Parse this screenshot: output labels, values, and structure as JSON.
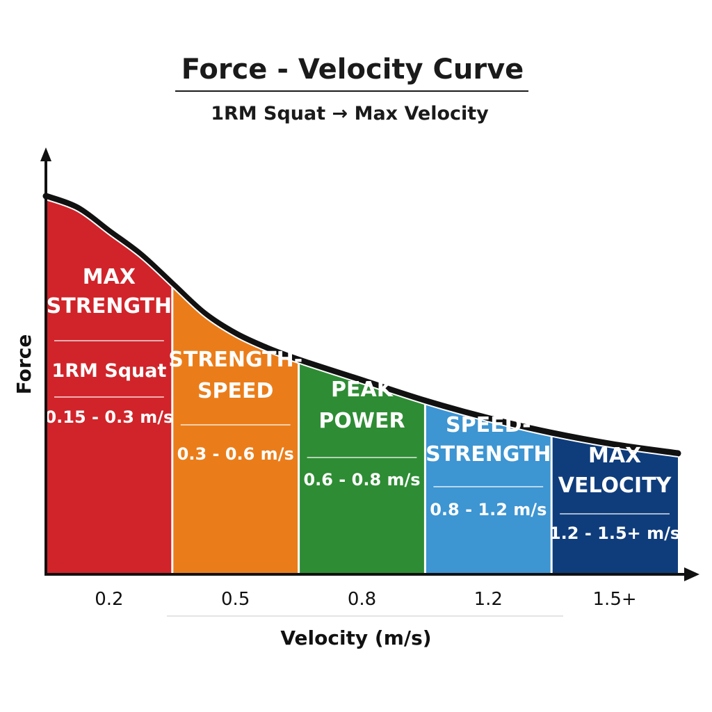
{
  "chart_data": {
    "type": "area",
    "title": "Force - Velocity Curve",
    "subtitle": "1RM Squat → Max Velocity",
    "xlabel": "Velocity (m/s)",
    "ylabel": "Force",
    "x_ticks": [
      "0.2",
      "0.5",
      "0.8",
      "1.2",
      "1.5+"
    ],
    "grid": false,
    "zones": [
      {
        "name_lines": [
          "MAX",
          "STRENGTH"
        ],
        "sub": "1RM Squat",
        "range": "0.15 - 0.3 m/s",
        "color": "#d0242a",
        "x_start": 0.0,
        "x_end": 0.3
      },
      {
        "name_lines": [
          "STRENGTH-",
          "SPEED"
        ],
        "sub": "",
        "range": "0.3 - 0.6 m/s",
        "color": "#ea7d1a",
        "x_start": 0.3,
        "x_end": 0.6
      },
      {
        "name_lines": [
          "PEAK",
          "POWER"
        ],
        "sub": "",
        "range": "0.6 - 0.8 m/s",
        "color": "#2e8c34",
        "x_start": 0.6,
        "x_end": 0.9
      },
      {
        "name_lines": [
          "SPEED-",
          "STRENGTH"
        ],
        "sub": "",
        "range": "0.8 - 1.2 m/s",
        "color": "#3d95d2",
        "x_start": 0.9,
        "x_end": 1.2
      },
      {
        "name_lines": [
          "MAX",
          "VELOCITY"
        ],
        "sub": "",
        "range": "1.2 - 1.5+ m/s",
        "color": "#0f3d7c",
        "x_start": 1.2,
        "x_end": 1.5
      }
    ],
    "curve": {
      "x": [
        0.0,
        0.075,
        0.15,
        0.225,
        0.3,
        0.375,
        0.45,
        0.525,
        0.6,
        0.75,
        0.9,
        1.05,
        1.2,
        1.35,
        1.5
      ],
      "y": [
        1.0,
        0.96,
        0.88,
        0.8,
        0.7,
        0.6,
        0.53,
        0.48,
        0.44,
        0.37,
        0.3,
        0.24,
        0.19,
        0.15,
        0.12
      ]
    },
    "colors": {
      "curve": "#111111",
      "axis": "#111111",
      "divider": "#ffffff"
    }
  }
}
